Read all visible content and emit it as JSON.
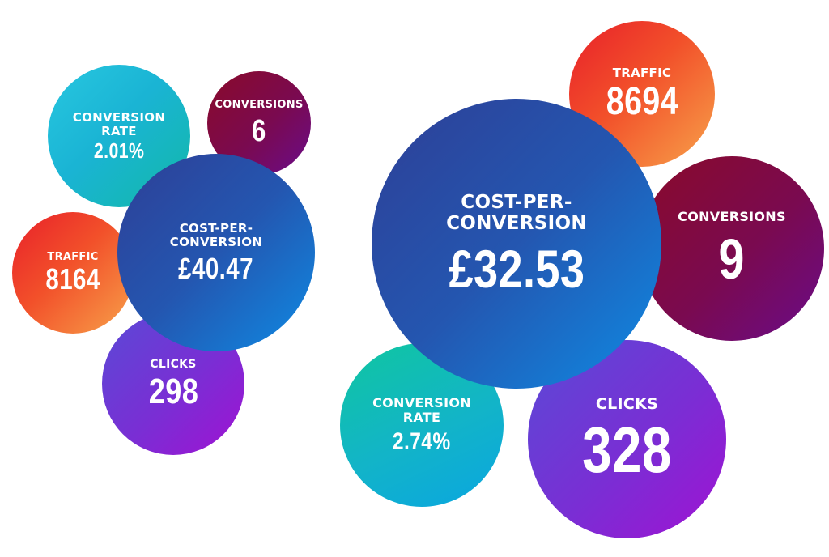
{
  "left_cluster": {
    "conversion_rate": {
      "label": "CONVERSION\nRATE",
      "value": "2.01%"
    },
    "conversions": {
      "label": "CONVERSIONS",
      "value": "6"
    },
    "traffic": {
      "label": "TRAFFIC",
      "value": "8164"
    },
    "clicks": {
      "label": "CLICKS",
      "value": "298"
    },
    "cost_per_conversion": {
      "label": "COST-PER-\nCONVERSION",
      "value": "£40.47"
    }
  },
  "right_cluster": {
    "traffic": {
      "label": "TRAFFIC",
      "value": "8694"
    },
    "conversions": {
      "label": "CONVERSIONS",
      "value": "9"
    },
    "conversion_rate": {
      "label": "CONVERSION\nRATE",
      "value": "2.74%"
    },
    "clicks": {
      "label": "CLICKS",
      "value": "328"
    },
    "cost_per_conversion": {
      "label": "COST-PER-\nCONVERSION",
      "value": "£32.53"
    }
  },
  "colors": {
    "teal": "#1ab4d4",
    "maroon": "#7a0a50",
    "blue": "#2456b0",
    "orange": "#f2502a",
    "purple": "#7a2ed4"
  }
}
